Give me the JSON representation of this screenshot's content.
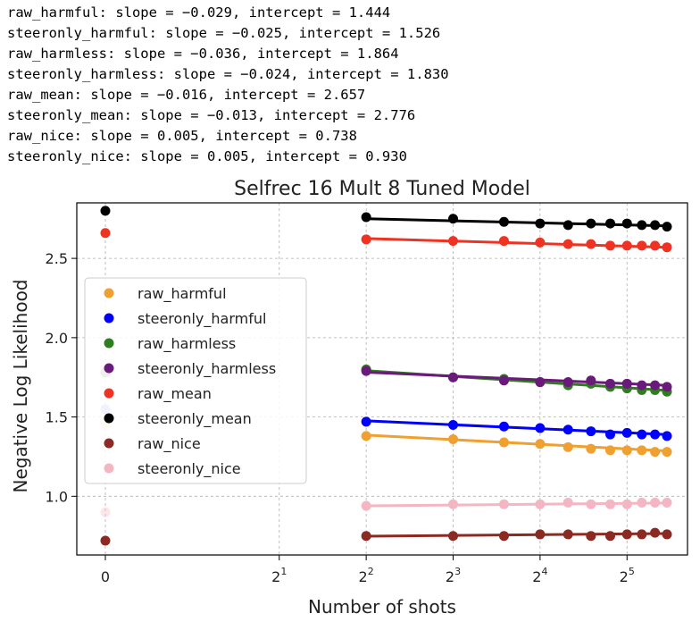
{
  "fit_lines": [
    "raw_harmful: slope = −0.029, intercept = 1.444",
    "steeronly_harmful: slope = −0.025, intercept = 1.526",
    "raw_harmless: slope = −0.036, intercept = 1.864",
    "steeronly_harmless: slope = −0.024, intercept = 1.830",
    "raw_mean: slope = −0.016, intercept = 2.657",
    "steeronly_mean: slope = −0.013, intercept = 2.776",
    "raw_nice: slope = 0.005, intercept = 0.738",
    "steeronly_nice: slope = 0.005, intercept = 0.930"
  ],
  "chart_data": {
    "type": "scatter",
    "title": "Selfrec 16 Mult 8 Tuned Model",
    "xlabel": "Number of shots",
    "ylabel": "Negative Log Likelihood",
    "x_scale": "symlog base 2 (linear below 1)",
    "x": [
      0,
      4,
      6,
      8,
      10,
      12,
      14,
      16,
      18,
      20,
      22,
      24,
      26,
      28,
      30,
      32,
      34,
      36,
      38,
      40,
      42,
      44
    ],
    "x_ticks": [
      {
        "value": 0,
        "label": "0"
      },
      {
        "value": 2,
        "base": "2",
        "exp": "1"
      },
      {
        "value": 4,
        "base": "2",
        "exp": "2"
      },
      {
        "value": 8,
        "base": "2",
        "exp": "3"
      },
      {
        "value": 16,
        "base": "2",
        "exp": "4"
      },
      {
        "value": 32,
        "base": "2",
        "exp": "5"
      }
    ],
    "y_ticks": [
      "1.0",
      "1.5",
      "2.0",
      "2.5"
    ],
    "ylim": [
      0.63,
      2.85
    ],
    "grid": true,
    "legend_position": "center-left",
    "series": [
      {
        "name": "raw_harmful",
        "color": "#f0a030",
        "x": [
          0,
          4,
          8,
          12,
          16,
          20,
          24,
          28,
          32,
          36,
          40,
          44
        ],
        "values": [
          1.46,
          1.38,
          1.36,
          1.34,
          1.33,
          1.31,
          1.3,
          1.29,
          1.29,
          1.29,
          1.28,
          1.28
        ],
        "fit": {
          "slope": -0.029,
          "intercept": 1.444
        }
      },
      {
        "name": "steeronly_harmful",
        "color": "#0000ff",
        "x": [
          0,
          4,
          8,
          12,
          16,
          20,
          24,
          28,
          32,
          36,
          40,
          44
        ],
        "values": [
          1.55,
          1.47,
          1.45,
          1.44,
          1.43,
          1.42,
          1.41,
          1.39,
          1.4,
          1.39,
          1.39,
          1.38
        ],
        "fit": {
          "slope": -0.025,
          "intercept": 1.526
        }
      },
      {
        "name": "raw_harmless",
        "color": "#2e7d1e",
        "x": [
          0,
          4,
          8,
          12,
          16,
          20,
          24,
          28,
          32,
          36,
          40,
          44
        ],
        "values": [
          1.78,
          1.8,
          1.75,
          1.74,
          1.72,
          1.7,
          1.71,
          1.69,
          1.68,
          1.67,
          1.67,
          1.66
        ],
        "fit": {
          "slope": -0.036,
          "intercept": 1.864
        }
      },
      {
        "name": "steeronly_harmless",
        "color": "#6a1a7a",
        "x": [
          0,
          4,
          8,
          12,
          16,
          20,
          24,
          28,
          32,
          36,
          40,
          44
        ],
        "values": [
          1.78,
          1.79,
          1.75,
          1.73,
          1.72,
          1.72,
          1.73,
          1.71,
          1.71,
          1.7,
          1.7,
          1.69
        ],
        "fit": {
          "slope": -0.024,
          "intercept": 1.83
        }
      },
      {
        "name": "raw_mean",
        "color": "#ee3322",
        "x": [
          0,
          4,
          8,
          12,
          16,
          20,
          24,
          28,
          32,
          36,
          40,
          44
        ],
        "values": [
          2.66,
          2.62,
          2.61,
          2.61,
          2.6,
          2.59,
          2.59,
          2.58,
          2.58,
          2.58,
          2.58,
          2.57
        ],
        "fit": {
          "slope": -0.016,
          "intercept": 2.657
        }
      },
      {
        "name": "steeronly_mean",
        "color": "#000000",
        "x": [
          0,
          4,
          8,
          12,
          16,
          20,
          24,
          28,
          32,
          36,
          40,
          44
        ],
        "values": [
          2.8,
          2.76,
          2.75,
          2.73,
          2.72,
          2.71,
          2.72,
          2.72,
          2.72,
          2.71,
          2.71,
          2.7
        ],
        "fit": {
          "slope": -0.013,
          "intercept": 2.776
        }
      },
      {
        "name": "raw_nice",
        "color": "#8b2a22",
        "x": [
          0,
          4,
          8,
          12,
          16,
          20,
          24,
          28,
          32,
          36,
          40,
          44
        ],
        "values": [
          0.72,
          0.75,
          0.75,
          0.75,
          0.76,
          0.76,
          0.75,
          0.75,
          0.76,
          0.76,
          0.77,
          0.76
        ],
        "fit": {
          "slope": 0.005,
          "intercept": 0.738
        }
      },
      {
        "name": "steeronly_nice",
        "color": "#f4b6c2",
        "x": [
          0,
          4,
          8,
          12,
          16,
          20,
          24,
          28,
          32,
          36,
          40,
          44
        ],
        "values": [
          0.9,
          0.94,
          0.95,
          0.95,
          0.95,
          0.96,
          0.95,
          0.95,
          0.95,
          0.96,
          0.96,
          0.96
        ],
        "fit": {
          "slope": 0.005,
          "intercept": 0.93
        }
      }
    ]
  }
}
